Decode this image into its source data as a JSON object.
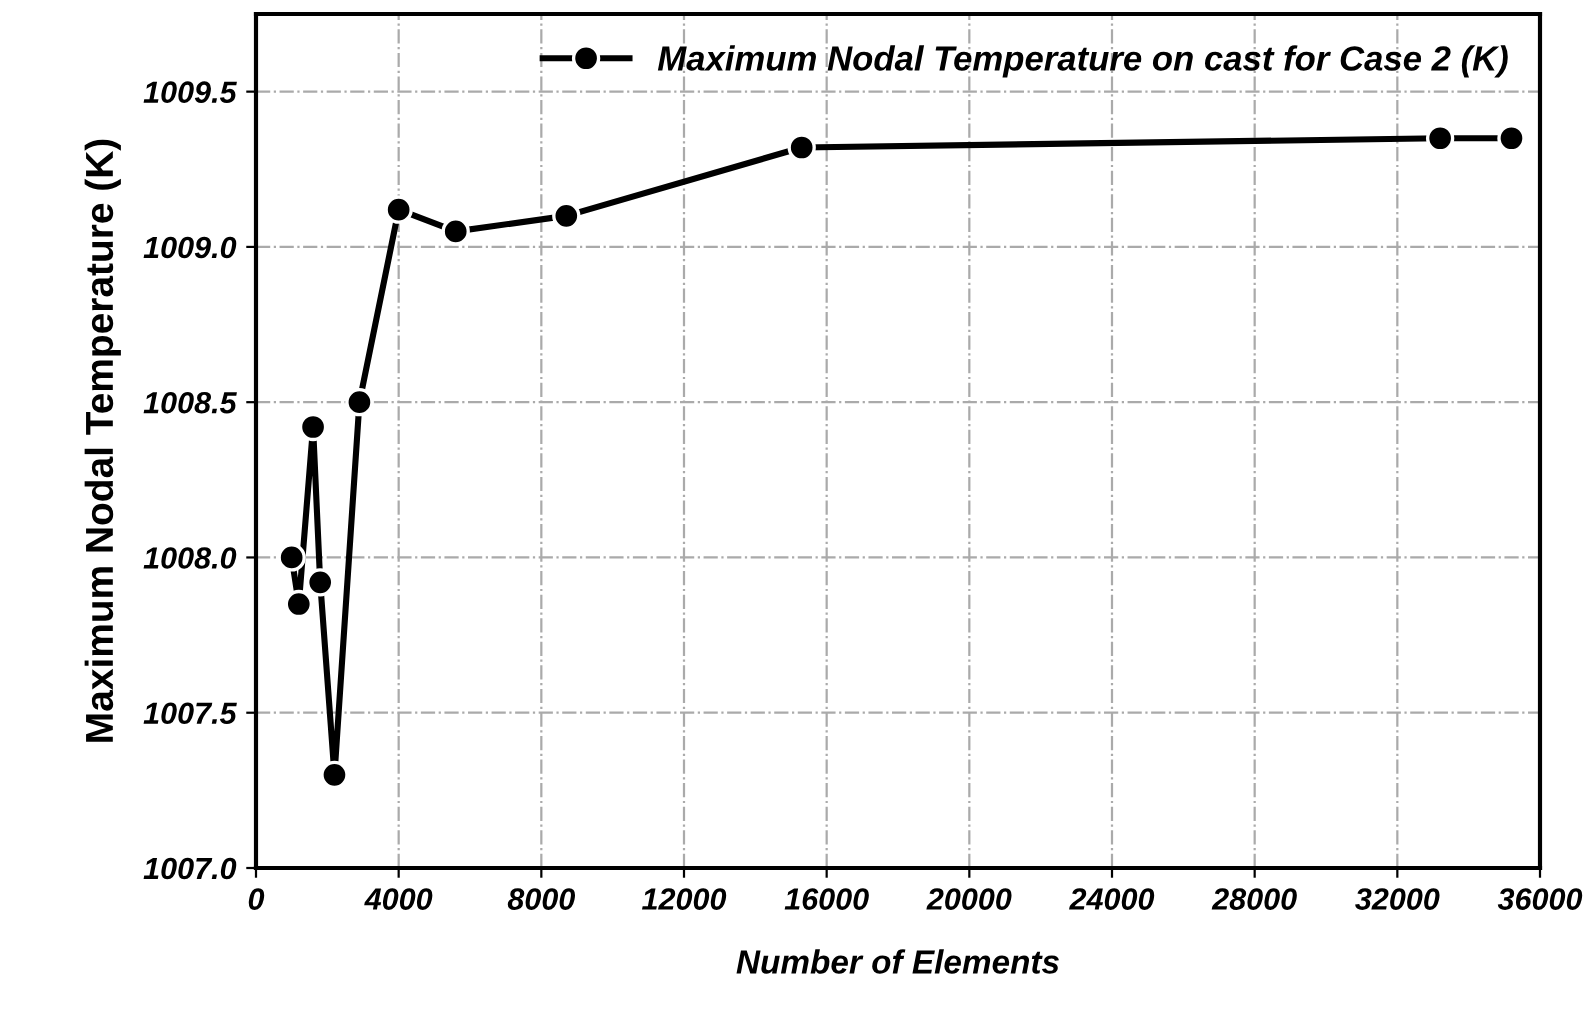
{
  "chart_data": {
    "type": "line",
    "xlabel": "Number of Elements",
    "ylabel": "Maximum Nodal Temperature (K)",
    "x": [
      1000,
      1200,
      1600,
      1800,
      2200,
      2900,
      4000,
      5600,
      8700,
      15300,
      33200,
      35200
    ],
    "series": [
      {
        "name": "Maximum Nodal Temperature on cast for Case 2 (K)",
        "color": "#000000",
        "values": [
          1008.0,
          1007.85,
          1008.42,
          1007.92,
          1007.3,
          1008.5,
          1009.12,
          1009.05,
          1009.1,
          1009.32,
          1009.35,
          1009.35
        ]
      }
    ],
    "xlim": [
      0,
      36000
    ],
    "xticks": [
      0,
      4000,
      8000,
      12000,
      16000,
      20000,
      24000,
      28000,
      32000,
      36000
    ],
    "ylim": [
      1007.0,
      1009.75
    ],
    "yticks": [
      {
        "value": 1007.0,
        "label": "1007.0"
      },
      {
        "value": 1007.5,
        "label": "1007.5"
      },
      {
        "value": 1008.0,
        "label": "1008.0"
      },
      {
        "value": 1008.5,
        "label": "1008.5"
      },
      {
        "value": 1009.0,
        "label": "1009.0"
      },
      {
        "value": 1009.5,
        "label": "1009.5"
      }
    ],
    "grid": true,
    "legend": "top right",
    "marker": "circle",
    "line_style": "solid"
  }
}
